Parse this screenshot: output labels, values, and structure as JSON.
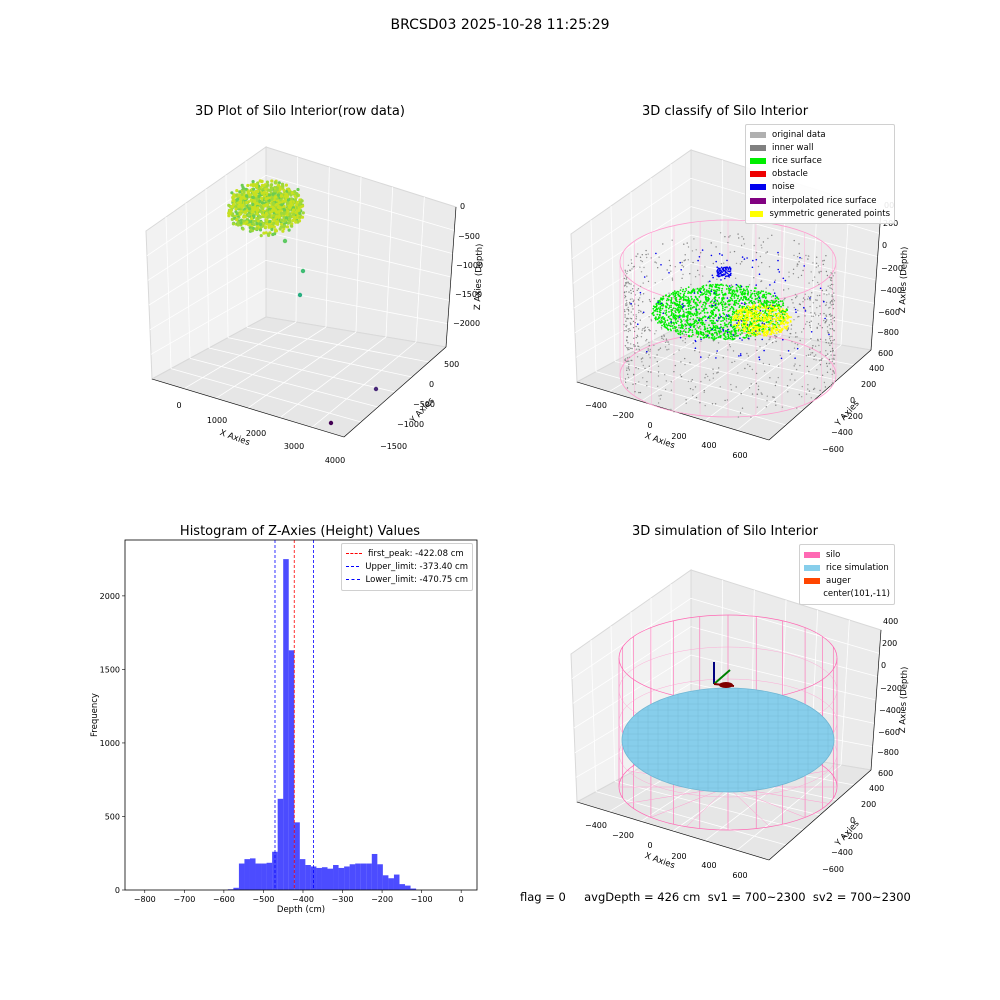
{
  "figure": {
    "suptitle": "BRCSD03 2025-10-28 11:25:29"
  },
  "chart_data": [
    {
      "id": "raw",
      "type": "scatter",
      "title": "3D Plot of Silo Interior(row data)",
      "xlabel": "X Axies",
      "ylabel": "Y Axies",
      "zlabel": "Z Axies (Depth)",
      "xticks": [
        "0",
        "1000",
        "2000",
        "3000",
        "4000"
      ],
      "yticks": [
        "500",
        "0",
        "−500",
        "−1000",
        "−1500"
      ],
      "zticks": [
        "0",
        "−500",
        "−1000",
        "−1500",
        "−2000"
      ],
      "xlim": [
        -500,
        4000
      ],
      "ylim": [
        -1700,
        700
      ],
      "zlim": [
        -2300,
        100
      ],
      "colormap": "viridis",
      "outliers": [
        [
          600,
          -100,
          -600
        ],
        [
          700,
          -300,
          -1150
        ],
        [
          1000,
          -500,
          -1550
        ],
        [
          3900,
          -1000,
          -1900
        ],
        [
          4000,
          -1500,
          -1650
        ]
      ]
    },
    {
      "id": "classify",
      "type": "scatter",
      "title": "3D classify of Silo Interior",
      "xlabel": "X Axies",
      "ylabel": "Y Axies",
      "zlabel": "Z Axies (Depth)",
      "xticks": [
        "−400",
        "−200",
        "0",
        "200",
        "400",
        "600"
      ],
      "yticks": [
        "600",
        "400",
        "200",
        "0",
        "−200",
        "−400",
        "−600"
      ],
      "zticks": [
        "200",
        "0",
        "−200",
        "−400",
        "−600",
        "−800"
      ],
      "legend": [
        {
          "label": "original data",
          "color": "#b0b0b0"
        },
        {
          "label": "inner wall",
          "color": "#808080"
        },
        {
          "label": "rice surface",
          "color": "#00ee00"
        },
        {
          "label": "obstacle",
          "color": "#ee0000"
        },
        {
          "label": "noise",
          "color": "#0000ee"
        },
        {
          "label": "interpolated rice surface",
          "color": "#800080"
        },
        {
          "label": "symmetric generated points",
          "color": "#ffff00"
        }
      ],
      "visible_z_tick_top": "00"
    },
    {
      "id": "hist",
      "type": "bar",
      "title": "Histogram of Z-Axies (Height) Values",
      "xlabel": "Depth (cm)",
      "ylabel": "Frequency",
      "xlim": [
        -850,
        40
      ],
      "ylim": [
        0,
        2380
      ],
      "xticks": [
        -800,
        -700,
        -600,
        -500,
        -400,
        -300,
        -200,
        -100,
        0
      ],
      "yticks": [
        0,
        500,
        1000,
        1500,
        2000
      ],
      "bin_width": 14,
      "bin_start": -590,
      "values": [
        5,
        15,
        180,
        210,
        215,
        180,
        180,
        185,
        260,
        620,
        2250,
        1630,
        460,
        210,
        170,
        160,
        150,
        155,
        145,
        170,
        150,
        160,
        175,
        180,
        180,
        180,
        245,
        175,
        100,
        80,
        105,
        40,
        30,
        10
      ],
      "bar_color": "#0000ff",
      "lines": [
        {
          "label": "first_peak: -422.08 cm",
          "x": -422.08,
          "color": "#ff0000"
        },
        {
          "label": "Upper_limit: -373.40 cm",
          "x": -373.4,
          "color": "#0000ff"
        },
        {
          "label": "Lower_limit: -470.75 cm",
          "x": -470.75,
          "color": "#0000ff"
        }
      ]
    },
    {
      "id": "sim",
      "type": "surface",
      "title": "3D simulation of Silo Interior",
      "xlabel": "X Axies",
      "ylabel": "Y Axies",
      "zlabel": "Z Axies (Depth)",
      "xticks": [
        "−400",
        "−200",
        "0",
        "200",
        "400",
        "600"
      ],
      "yticks": [
        "600",
        "400",
        "200",
        "0",
        "−200",
        "−400",
        "−600"
      ],
      "zticks": [
        "400",
        "200",
        "0",
        "−200",
        "−400",
        "−600",
        "−800"
      ],
      "legend": [
        {
          "label": "silo",
          "color": "#ff69b4"
        },
        {
          "label": "rice simulation",
          "color": "#87ceeb"
        },
        {
          "label": "auger",
          "color": "#ff4500"
        },
        {
          "label": "center(101,-11)",
          "color": ""
        }
      ]
    }
  ],
  "footer": {
    "text": "flag = 0     avgDepth = 426 cm  sv1 = 700~2300  sv2 = 700~2300"
  }
}
